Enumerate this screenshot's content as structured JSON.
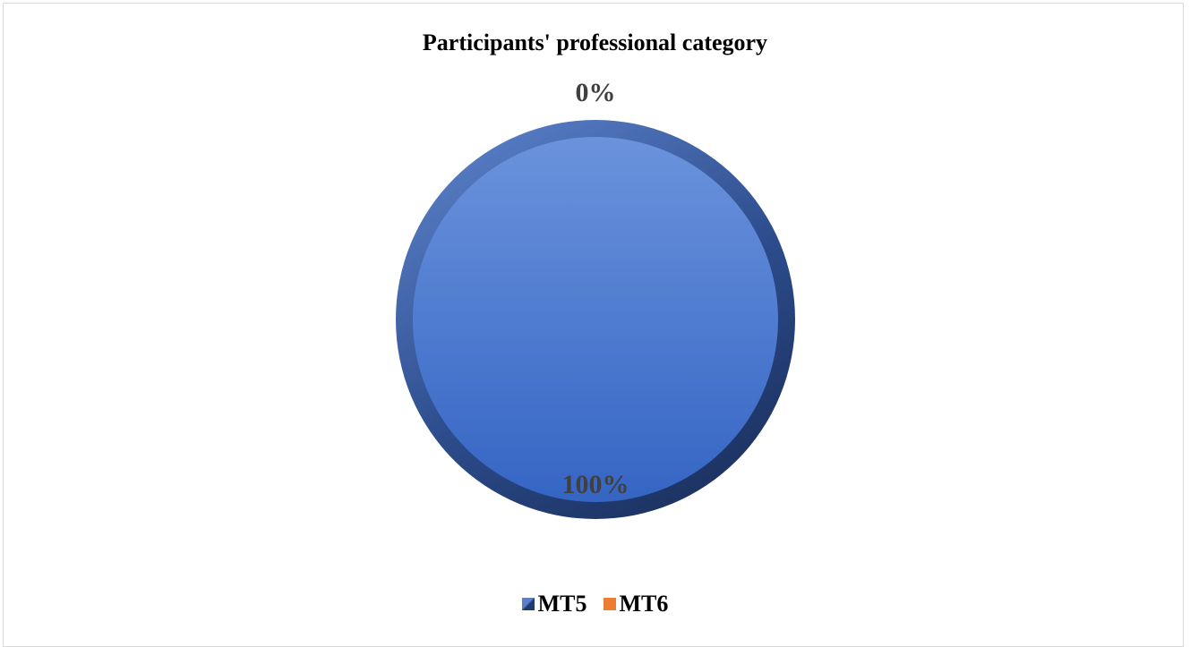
{
  "chart_data": {
    "type": "pie",
    "title": "Participants' professional category",
    "series": [
      {
        "name": "MT5",
        "value": 100,
        "label": "100%",
        "color": "#3b6fcf"
      },
      {
        "name": "MT6",
        "value": 0,
        "label": "0%",
        "color": "#ed7d31"
      }
    ],
    "legend_position": "bottom"
  }
}
